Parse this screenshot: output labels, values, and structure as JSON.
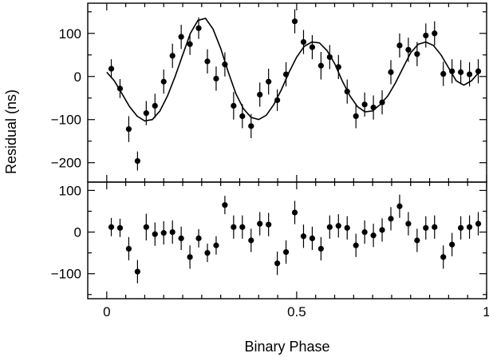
{
  "chart_data": [
    {
      "type": "scatter",
      "ylabel": "Residual (ns)",
      "xlim": [
        -0.05,
        1.0
      ],
      "ylim": [
        -245,
        170
      ],
      "yticks": [
        -200,
        -100,
        0,
        100
      ],
      "ytick_labels": [
        "−200",
        "−100",
        "0",
        "100"
      ],
      "error_bars": true,
      "series": [
        {
          "marker": "circle",
          "x": [
            0.012,
            0.035,
            0.058,
            0.081,
            0.104,
            0.127,
            0.15,
            0.173,
            0.196,
            0.219,
            0.242,
            0.265,
            0.288,
            0.311,
            0.334,
            0.357,
            0.38,
            0.403,
            0.426,
            0.449,
            0.472,
            0.495,
            0.518,
            0.541,
            0.564,
            0.587,
            0.61,
            0.633,
            0.656,
            0.679,
            0.702,
            0.725,
            0.748,
            0.771,
            0.794,
            0.817,
            0.84,
            0.863,
            0.886,
            0.909,
            0.932,
            0.955,
            0.978
          ],
          "y": [
            18,
            -28,
            -122,
            -196,
            -85,
            -68,
            -12,
            48,
            92,
            75,
            112,
            35,
            -5,
            28,
            -68,
            -92,
            -115,
            -42,
            -12,
            -55,
            5,
            128,
            80,
            68,
            25,
            45,
            22,
            -35,
            -92,
            -65,
            -72,
            -60,
            10,
            72,
            62,
            52,
            95,
            100,
            6,
            12,
            10,
            5,
            12
          ],
          "yerr": [
            22,
            22,
            30,
            22,
            28,
            28,
            28,
            28,
            28,
            25,
            25,
            28,
            28,
            28,
            32,
            28,
            28,
            28,
            30,
            25,
            28,
            28,
            28,
            28,
            32,
            28,
            28,
            28,
            28,
            28,
            28,
            28,
            28,
            28,
            28,
            28,
            28,
            28,
            28,
            28,
            28,
            28,
            28
          ]
        },
        {
          "type": "line",
          "x": [
            0.0,
            0.02,
            0.04,
            0.06,
            0.08,
            0.1,
            0.12,
            0.14,
            0.16,
            0.18,
            0.2,
            0.22,
            0.24,
            0.26,
            0.28,
            0.3,
            0.32,
            0.34,
            0.36,
            0.38,
            0.4,
            0.42,
            0.44,
            0.46,
            0.48,
            0.5,
            0.52,
            0.54,
            0.56,
            0.58,
            0.6,
            0.62,
            0.64,
            0.66,
            0.68,
            0.7,
            0.72,
            0.74,
            0.76,
            0.78,
            0.8,
            0.82,
            0.84,
            0.86,
            0.88,
            0.9,
            0.92,
            0.94,
            0.96,
            0.98
          ],
          "y": [
            10,
            -10,
            -40,
            -70,
            -92,
            -103,
            -100,
            -80,
            -45,
            0,
            50,
            100,
            130,
            135,
            110,
            65,
            10,
            -40,
            -75,
            -95,
            -100,
            -90,
            -65,
            -30,
            10,
            45,
            70,
            80,
            78,
            60,
            30,
            -10,
            -45,
            -70,
            -82,
            -80,
            -65,
            -45,
            -15,
            20,
            55,
            75,
            80,
            72,
            50,
            20,
            -10,
            -20,
            -10,
            10
          ]
        }
      ]
    },
    {
      "type": "scatter",
      "xlabel": "Binary Phase",
      "ylabel": "",
      "xlim": [
        -0.05,
        1.0
      ],
      "ylim": [
        -160,
        120
      ],
      "xticks": [
        0,
        0.5,
        1
      ],
      "xtick_labels": [
        "0",
        "0.5",
        "1"
      ],
      "yticks": [
        -100,
        0,
        100
      ],
      "ytick_labels": [
        "−100",
        "0",
        "100"
      ],
      "error_bars": true,
      "series": [
        {
          "marker": "circle",
          "x": [
            0.012,
            0.035,
            0.058,
            0.081,
            0.104,
            0.127,
            0.15,
            0.173,
            0.196,
            0.219,
            0.242,
            0.265,
            0.288,
            0.311,
            0.334,
            0.357,
            0.38,
            0.403,
            0.426,
            0.449,
            0.472,
            0.495,
            0.518,
            0.541,
            0.564,
            0.587,
            0.61,
            0.633,
            0.656,
            0.679,
            0.702,
            0.725,
            0.748,
            0.771,
            0.794,
            0.817,
            0.84,
            0.863,
            0.886,
            0.909,
            0.932,
            0.955,
            0.978
          ],
          "y": [
            12,
            10,
            -40,
            -95,
            12,
            -5,
            -2,
            0,
            -15,
            -60,
            -15,
            -50,
            -32,
            65,
            12,
            12,
            -20,
            20,
            18,
            -75,
            -48,
            47,
            -10,
            -15,
            -40,
            12,
            15,
            10,
            -32,
            0,
            -8,
            5,
            32,
            62,
            20,
            -20,
            10,
            12,
            -60,
            -30,
            10,
            12,
            20
          ],
          "yerr": [
            22,
            22,
            28,
            28,
            32,
            28,
            28,
            28,
            28,
            28,
            22,
            22,
            22,
            22,
            28,
            28,
            28,
            28,
            28,
            28,
            28,
            28,
            28,
            28,
            28,
            28,
            28,
            28,
            28,
            28,
            28,
            28,
            28,
            28,
            28,
            28,
            28,
            28,
            28,
            28,
            28,
            28,
            28
          ]
        }
      ]
    }
  ]
}
